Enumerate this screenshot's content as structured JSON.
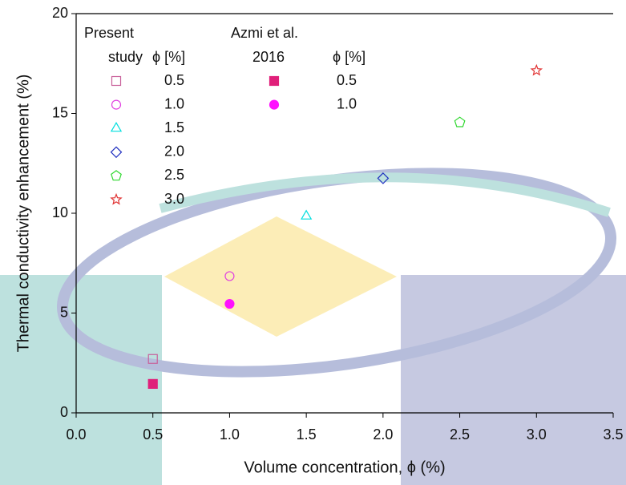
{
  "chart_data": {
    "type": "scatter",
    "xlabel": "Volume concentration, ϕ (%)",
    "ylabel": "Thermal conductivity enhancement (%)",
    "xlim": [
      0,
      3.5
    ],
    "ylim": [
      0,
      20
    ],
    "xticks": [
      {
        "value": 0,
        "label": "0.0"
      },
      {
        "value": 0.5,
        "label": "0.5"
      },
      {
        "value": 1,
        "label": "1.0"
      },
      {
        "value": 1.5,
        "label": "1.5"
      },
      {
        "value": 2,
        "label": "2.0"
      },
      {
        "value": 2.5,
        "label": "2.5"
      },
      {
        "value": 3,
        "label": "3.0"
      },
      {
        "value": 3.5,
        "label": "3.5"
      }
    ],
    "yticks": [
      0,
      5,
      10,
      15,
      20
    ],
    "groups": [
      {
        "title_lines": [
          "Present",
          "study"
        ],
        "column_header": "ϕ [%]",
        "series": [
          {
            "name": "0.5",
            "color": "#c8609a",
            "marker": "square-open",
            "x": [
              0.5
            ],
            "y": [
              2.7
            ]
          },
          {
            "name": "1.0",
            "color": "#e040e0",
            "marker": "circle-open",
            "x": [
              1.0
            ],
            "y": [
              6.85
            ]
          },
          {
            "name": "1.5",
            "color": "#00dede",
            "marker": "triangle-open",
            "x": [
              1.5
            ],
            "y": [
              9.85
            ]
          },
          {
            "name": "2.0",
            "color": "#2030c0",
            "marker": "diamond-open",
            "x": [
              2.0
            ],
            "y": [
              11.75
            ]
          },
          {
            "name": "2.5",
            "color": "#30d830",
            "marker": "pentagon-open",
            "x": [
              2.5
            ],
            "y": [
              14.55
            ]
          },
          {
            "name": "3.0",
            "color": "#e03030",
            "marker": "star-open",
            "x": [
              3.0
            ],
            "y": [
              17.15
            ]
          }
        ]
      },
      {
        "title_lines": [
          "Azmi et al.",
          "2016"
        ],
        "column_header": "ϕ [%]",
        "series": [
          {
            "name": "0.5",
            "color": "#e0207a",
            "marker": "square-filled",
            "x": [
              0.5
            ],
            "y": [
              1.45
            ]
          },
          {
            "name": "1.0",
            "color": "#ff10ff",
            "marker": "circle-filled",
            "x": [
              1.0
            ],
            "y": [
              5.46
            ]
          }
        ]
      }
    ]
  }
}
